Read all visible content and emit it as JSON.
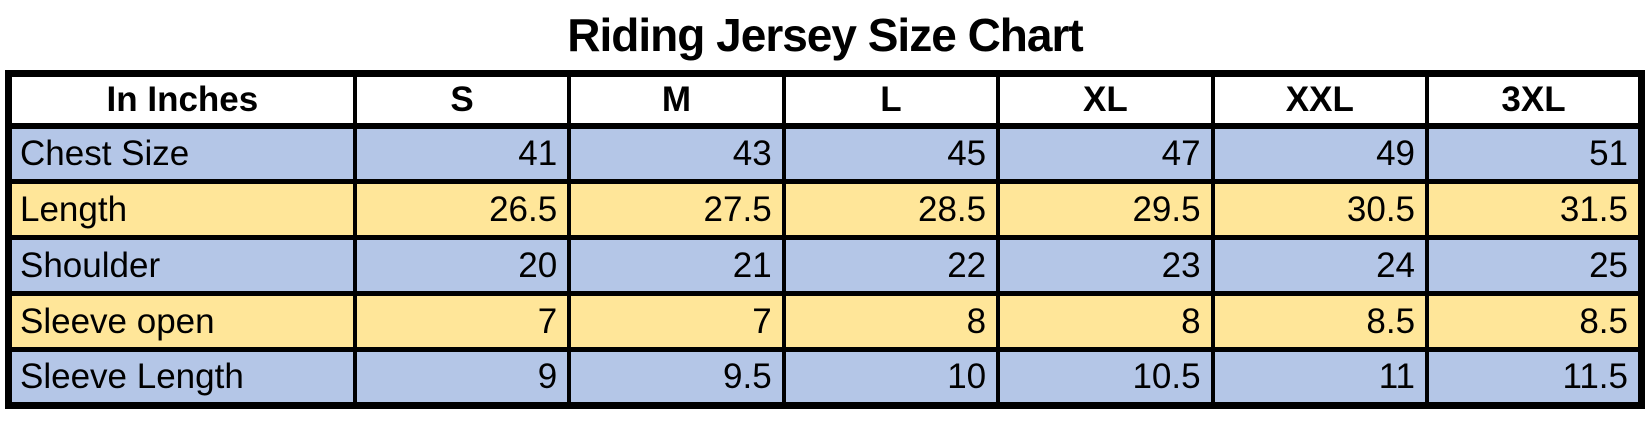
{
  "chart_data": {
    "type": "table",
    "title": "Riding Jersey Size Chart",
    "corner_label": "In Inches",
    "columns": [
      "S",
      "M",
      "L",
      "XL",
      "XXL",
      "3XL"
    ],
    "rows": [
      {
        "label": "Chest Size",
        "values": [
          "41",
          "43",
          "45",
          "47",
          "49",
          "51"
        ]
      },
      {
        "label": "Length",
        "values": [
          "26.5",
          "27.5",
          "28.5",
          "29.5",
          "30.5",
          "31.5"
        ]
      },
      {
        "label": "Shoulder",
        "values": [
          "20",
          "21",
          "22",
          "23",
          "24",
          "25"
        ]
      },
      {
        "label": "Sleeve open",
        "values": [
          "7",
          "7",
          "8",
          "8",
          "8.5",
          "8.5"
        ]
      },
      {
        "label": "Sleeve Length",
        "values": [
          "9",
          "9.5",
          "10",
          "10.5",
          "11",
          "11.5"
        ]
      }
    ],
    "row_colors": [
      "#b4c6e7",
      "#ffe699",
      "#b4c6e7",
      "#ffe699",
      "#b4c6e7"
    ],
    "colors": {
      "header_bg": "#ffffff",
      "row_blue": "#b4c6e7",
      "row_yellow": "#ffe699",
      "border": "#000000",
      "text": "#000000"
    },
    "layout": {
      "grid": true,
      "legend": false
    }
  }
}
